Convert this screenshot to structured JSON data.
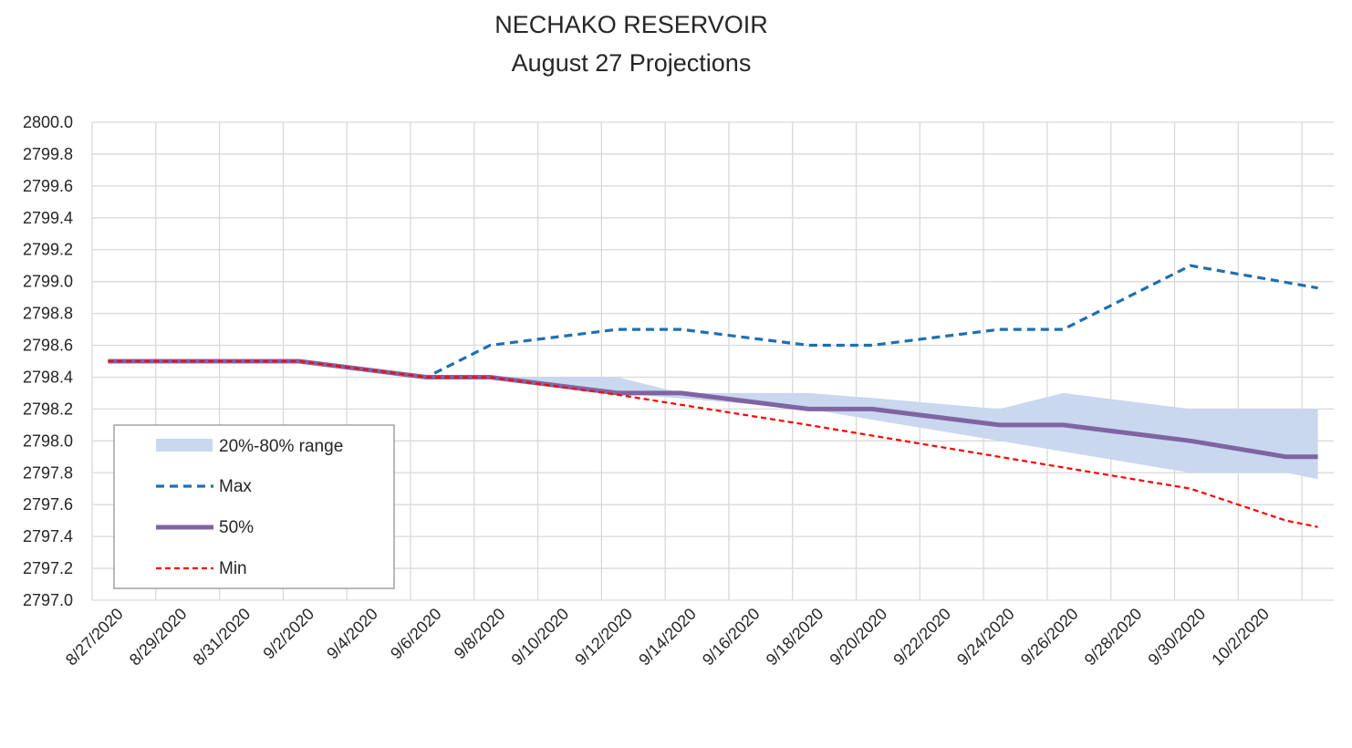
{
  "chart_data": {
    "type": "line",
    "title": "NECHAKO RESERVOIR",
    "subtitle": "August 27 Projections",
    "x_tick_labels": [
      "8/27/2020",
      "8/29/2020",
      "8/31/2020",
      "9/2/2020",
      "9/4/2020",
      "9/6/2020",
      "9/8/2020",
      "9/10/2020",
      "9/12/2020",
      "9/14/2020",
      "9/16/2020",
      "9/18/2020",
      "9/20/2020",
      "9/22/2020",
      "9/24/2020",
      "9/26/2020",
      "9/28/2020",
      "9/30/2020",
      "10/2/2020"
    ],
    "y_tick_labels": [
      "2800.0",
      "2799.8",
      "2799.6",
      "2799.4",
      "2799.2",
      "2799.0",
      "2798.8",
      "2798.6",
      "2798.4",
      "2798.2",
      "2798.0",
      "2797.8",
      "2797.6",
      "2797.4",
      "2797.2",
      "2797.0"
    ],
    "ylim": [
      2797.0,
      2800.0
    ],
    "xlim": [
      "8/27/2020",
      "10/4/2020"
    ],
    "grid": true,
    "legend_placement": "bottom-left",
    "colors": {
      "max": "#1f6fb2",
      "p50": "#8064a2",
      "min": "#ff0000",
      "range": "#c9d7ef",
      "grid": "#d9d9d9"
    },
    "series": [
      {
        "name": "Max",
        "style": "dashed",
        "points": [
          [
            "8/27/2020",
            2798.5
          ],
          [
            "9/2/2020",
            2798.5
          ],
          [
            "9/6/2020",
            2798.4
          ],
          [
            "9/8/2020",
            2798.6
          ],
          [
            "9/12/2020",
            2798.7
          ],
          [
            "9/14/2020",
            2798.7
          ],
          [
            "9/18/2020",
            2798.6
          ],
          [
            "9/20/2020",
            2798.6
          ],
          [
            "9/24/2020",
            2798.7
          ],
          [
            "9/26/2020",
            2798.7
          ],
          [
            "9/30/2020",
            2799.1
          ],
          [
            "10/4/2020",
            2798.96
          ]
        ]
      },
      {
        "name": "50%",
        "style": "solid",
        "points": [
          [
            "8/27/2020",
            2798.5
          ],
          [
            "9/2/2020",
            2798.5
          ],
          [
            "9/6/2020",
            2798.4
          ],
          [
            "9/8/2020",
            2798.4
          ],
          [
            "9/12/2020",
            2798.3
          ],
          [
            "9/14/2020",
            2798.3
          ],
          [
            "9/18/2020",
            2798.2
          ],
          [
            "9/20/2020",
            2798.2
          ],
          [
            "9/24/2020",
            2798.1
          ],
          [
            "9/26/2020",
            2798.1
          ],
          [
            "9/30/2020",
            2798.0
          ],
          [
            "10/3/2020",
            2797.9
          ],
          [
            "10/4/2020",
            2797.9
          ]
        ]
      },
      {
        "name": "Min",
        "style": "dashed",
        "points": [
          [
            "8/27/2020",
            2798.5
          ],
          [
            "9/2/2020",
            2798.5
          ],
          [
            "9/6/2020",
            2798.4
          ],
          [
            "9/8/2020",
            2798.4
          ],
          [
            "9/12/2020",
            2798.29
          ],
          [
            "9/18/2020",
            2798.1
          ],
          [
            "9/24/2020",
            2797.9
          ],
          [
            "9/30/2020",
            2797.7
          ],
          [
            "10/3/2020",
            2797.5
          ],
          [
            "10/4/2020",
            2797.46
          ]
        ]
      }
    ],
    "range_band": {
      "name": "20%-80% range",
      "upper": [
        [
          "9/6/2020",
          2798.4
        ],
        [
          "9/12/2020",
          2798.4
        ],
        [
          "9/14/2020",
          2798.3
        ],
        [
          "9/18/2020",
          2798.3
        ],
        [
          "9/20/2020",
          2798.27
        ],
        [
          "9/24/2020",
          2798.2
        ],
        [
          "9/26/2020",
          2798.3
        ],
        [
          "9/30/2020",
          2798.2
        ],
        [
          "10/4/2020",
          2798.2
        ]
      ],
      "lower": [
        [
          "9/6/2020",
          2798.4
        ],
        [
          "9/8/2020",
          2798.4
        ],
        [
          "9/12/2020",
          2798.3
        ],
        [
          "9/18/2020",
          2798.2
        ],
        [
          "9/24/2020",
          2798.0
        ],
        [
          "9/30/2020",
          2797.8
        ],
        [
          "10/3/2020",
          2797.8
        ],
        [
          "10/4/2020",
          2797.76
        ]
      ]
    }
  }
}
